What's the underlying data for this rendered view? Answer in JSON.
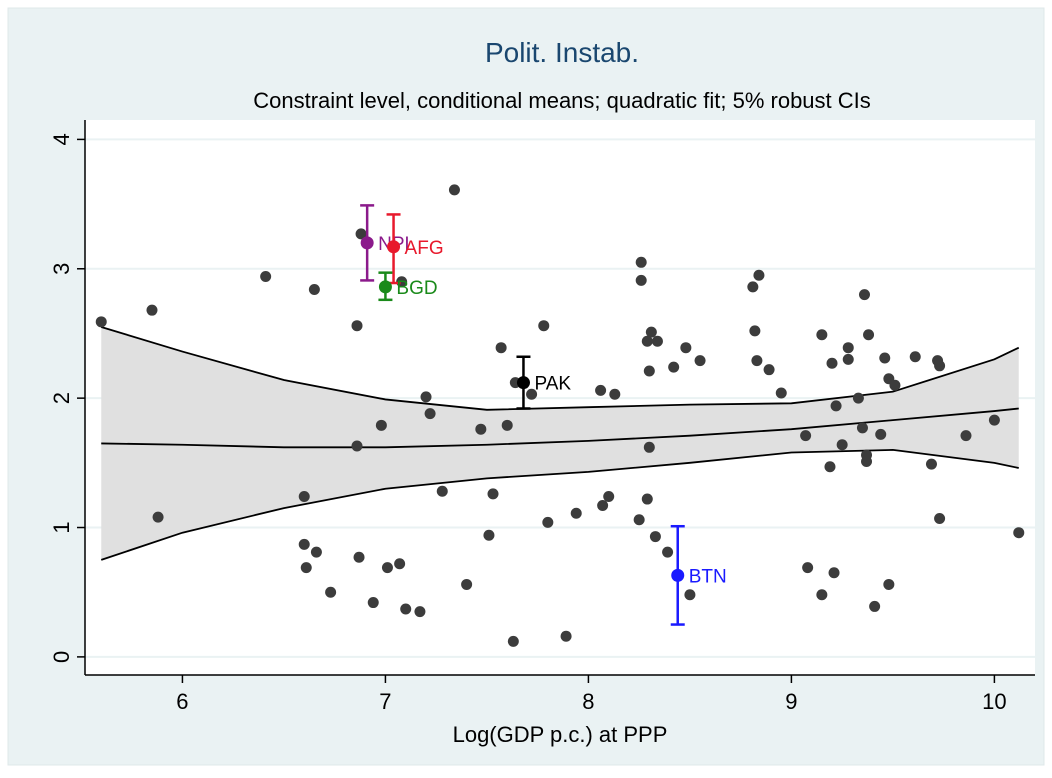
{
  "chart_data": {
    "type": "scatter",
    "title": "Polit. Instab.",
    "subtitle": "Constraint level, conditional means; quadratic fit; 5% robust CIs",
    "x_label": "Log(GDP p.c.) at PPP",
    "xlim": [
      5.52,
      10.2
    ],
    "ylim": [
      -0.14,
      4.15
    ],
    "xticks": [
      6,
      7,
      8,
      9,
      10
    ],
    "yticks": [
      0,
      1,
      2,
      3,
      4
    ],
    "grid": true,
    "point_color": "#3c3c3c",
    "band_color": "#e0e0e0",
    "x": [
      5.6,
      5.85,
      5.88,
      6.41,
      6.6,
      6.6,
      6.61,
      6.65,
      6.66,
      6.73,
      6.86,
      6.86,
      6.87,
      6.88,
      6.94,
      6.98,
      7.01,
      7.07,
      7.08,
      7.1,
      7.17,
      7.2,
      7.22,
      7.28,
      7.34,
      7.4,
      7.47,
      7.51,
      7.53,
      7.57,
      7.6,
      7.63,
      7.64,
      7.72,
      7.78,
      7.8,
      7.89,
      7.94,
      8.06,
      8.07,
      8.1,
      8.13,
      8.25,
      8.26,
      8.26,
      8.29,
      8.29,
      8.3,
      8.3,
      8.31,
      8.34,
      8.33,
      8.39,
      8.42,
      8.48,
      8.5,
      8.55,
      8.81,
      8.82,
      8.83,
      8.84,
      8.89,
      8.95,
      9.07,
      9.08,
      9.15,
      9.15,
      9.19,
      9.2,
      9.21,
      9.22,
      9.25,
      9.28,
      9.28,
      9.33,
      9.35,
      9.37,
      9.37,
      9.36,
      9.38,
      9.41,
      9.44,
      9.46,
      9.48,
      9.48,
      9.51,
      9.61,
      9.69,
      9.72,
      9.73,
      9.73,
      9.86,
      10.0,
      10.12
    ],
    "values": [
      2.59,
      2.68,
      1.08,
      2.94,
      1.24,
      0.87,
      0.69,
      2.84,
      0.81,
      0.5,
      2.56,
      1.63,
      0.77,
      3.27,
      0.42,
      1.79,
      0.69,
      0.72,
      2.9,
      0.37,
      0.35,
      2.01,
      1.88,
      1.28,
      3.61,
      0.56,
      1.76,
      0.94,
      1.26,
      2.39,
      1.79,
      0.12,
      2.12,
      2.03,
      2.56,
      1.04,
      0.16,
      1.11,
      2.06,
      1.17,
      1.24,
      2.03,
      1.06,
      3.05,
      2.91,
      2.44,
      1.22,
      1.62,
      2.21,
      2.51,
      2.44,
      0.93,
      0.81,
      2.24,
      2.39,
      0.48,
      2.29,
      2.86,
      2.52,
      2.29,
      2.95,
      2.22,
      2.04,
      1.71,
      0.69,
      0.48,
      2.49,
      1.47,
      2.27,
      0.65,
      1.94,
      1.64,
      2.39,
      2.3,
      2.0,
      1.77,
      1.56,
      1.51,
      2.8,
      2.49,
      0.39,
      1.72,
      2.31,
      2.15,
      0.56,
      2.1,
      2.32,
      1.49,
      2.29,
      2.25,
      1.07,
      1.71,
      1.83,
      0.96
    ],
    "band": {
      "x": [
        5.6,
        6.0,
        6.5,
        7.0,
        7.5,
        8.0,
        8.5,
        9.0,
        9.5,
        10.0,
        10.12
      ],
      "upper": [
        2.55,
        2.36,
        2.14,
        1.99,
        1.91,
        1.93,
        1.95,
        1.96,
        2.05,
        2.3,
        2.39
      ],
      "fit": [
        1.65,
        1.64,
        1.62,
        1.62,
        1.64,
        1.67,
        1.71,
        1.76,
        1.83,
        1.9,
        1.92
      ],
      "lower": [
        0.75,
        0.96,
        1.15,
        1.3,
        1.38,
        1.43,
        1.5,
        1.58,
        1.6,
        1.5,
        1.46
      ]
    },
    "labeled_points": [
      {
        "label": "NPL",
        "color": "#8b1a8b",
        "x": 6.91,
        "y": 3.2,
        "ci": [
          2.91,
          3.49
        ]
      },
      {
        "label": "AFG",
        "color": "#e8192c",
        "x": 7.04,
        "y": 3.17,
        "ci": [
          2.89,
          3.42
        ]
      },
      {
        "label": "BGD",
        "color": "#1a8a1a",
        "x": 7.0,
        "y": 2.86,
        "ci": [
          2.76,
          2.97
        ]
      },
      {
        "label": "PAK",
        "color": "#000000",
        "x": 7.68,
        "y": 2.12,
        "ci": [
          1.92,
          2.32
        ]
      },
      {
        "label": "BTN",
        "color": "#1a1aff",
        "x": 8.44,
        "y": 0.63,
        "ci": [
          0.25,
          1.01
        ]
      }
    ]
  }
}
